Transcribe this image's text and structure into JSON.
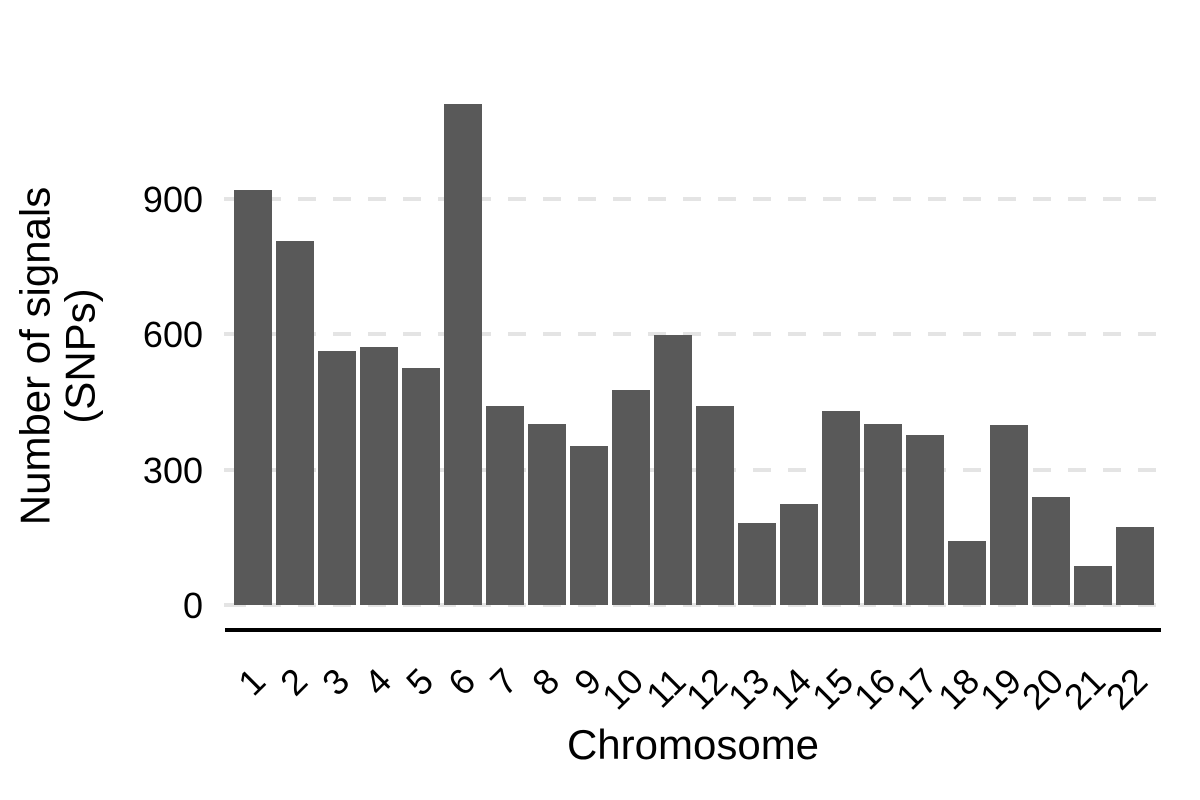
{
  "chart_data": {
    "type": "bar",
    "title": "",
    "xlabel": "Chromosome",
    "ylabel": "Number of signals\n(SNPs)",
    "categories": [
      "1",
      "2",
      "3",
      "4",
      "5",
      "6",
      "7",
      "8",
      "9",
      "10",
      "11",
      "12",
      "13",
      "14",
      "15",
      "16",
      "17",
      "18",
      "19",
      "20",
      "21",
      "22"
    ],
    "values": [
      920,
      806,
      562,
      572,
      526,
      1110,
      442,
      402,
      352,
      476,
      598,
      442,
      181,
      224,
      430,
      402,
      376,
      143,
      400,
      240,
      86,
      174
    ],
    "y_ticks": [
      0,
      300,
      600,
      900
    ],
    "ylim": [
      0,
      1150
    ],
    "grid": "horizontal dashed lines at y ticks, drawn behind bars",
    "legend_position": "none",
    "x_tick_rotation_deg": 45,
    "bar_color": "#595959",
    "grid_color": "#e4e4e4",
    "axis_line_color": "#000000",
    "text_color": "#000000",
    "background_color": "#ffffff"
  }
}
